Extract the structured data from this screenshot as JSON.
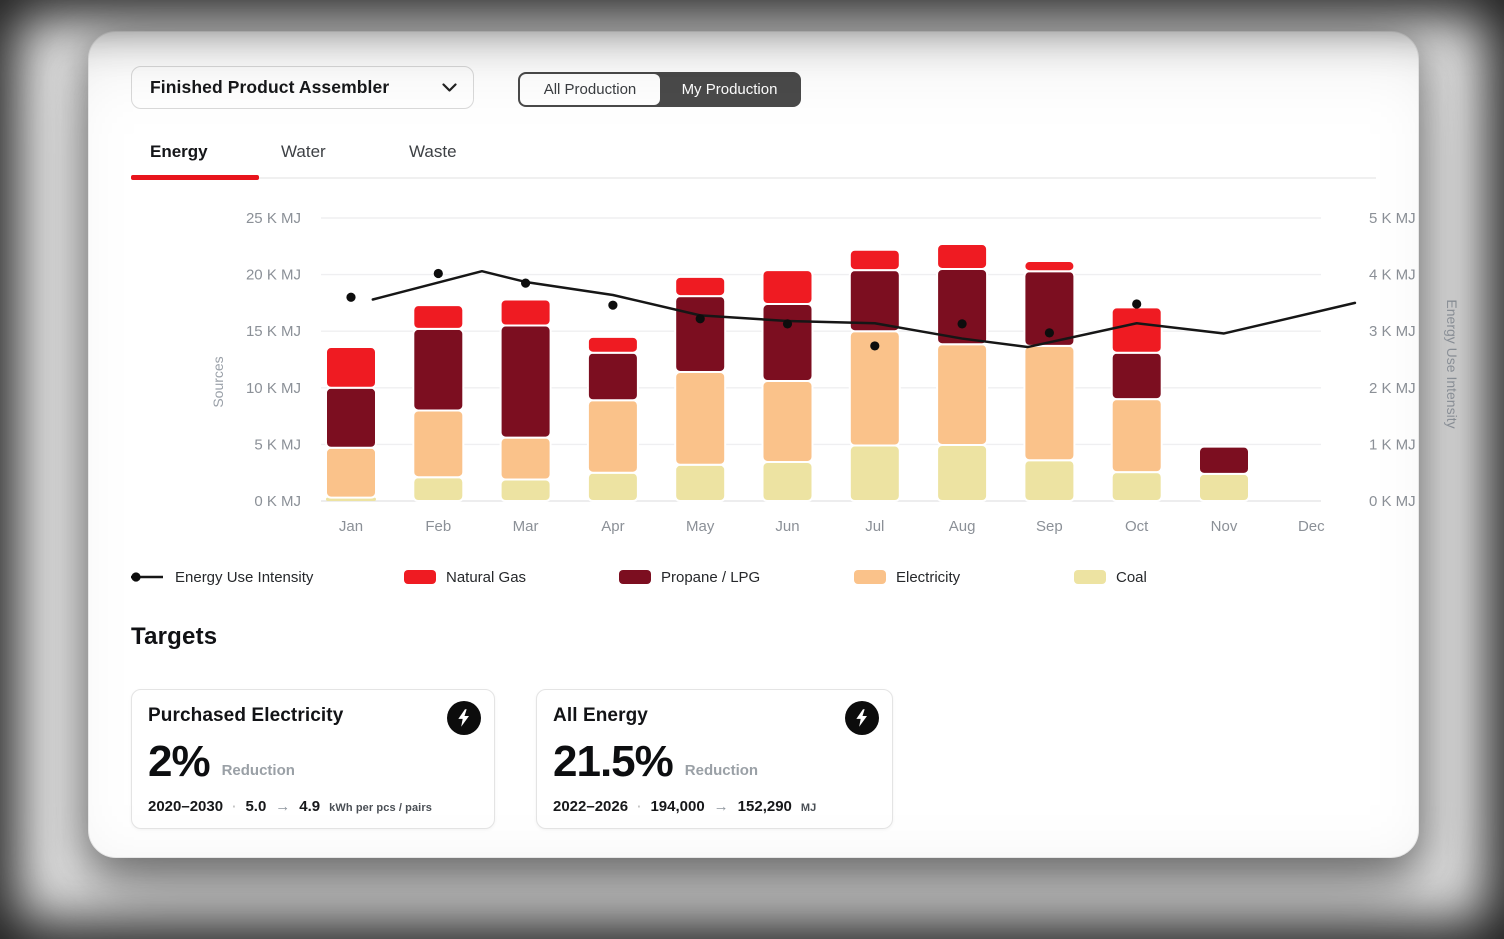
{
  "header": {
    "dropdown": {
      "label": "Finished Product Assembler"
    },
    "toggle": {
      "options": [
        "All Production",
        "My Production"
      ],
      "selected": "My Production"
    }
  },
  "tabs": [
    {
      "label": "Energy",
      "active": true
    },
    {
      "label": "Water",
      "active": false
    },
    {
      "label": "Waste",
      "active": false
    }
  ],
  "chart_data": {
    "type": "stacked-bar+line",
    "categories": [
      "Jan",
      "Feb",
      "Mar",
      "Apr",
      "May",
      "Jun",
      "Jul",
      "Aug",
      "Sep",
      "Oct",
      "Nov",
      "Dec"
    ],
    "left_axis": {
      "title": "Sources",
      "ticks": [
        "0 K MJ",
        "5 K MJ",
        "10 K MJ",
        "15 K MJ",
        "20 K MJ",
        "25 K MJ"
      ],
      "tick_values": [
        0,
        5,
        10,
        15,
        20,
        25
      ],
      "max": 25
    },
    "right_axis": {
      "title": "Energy Use Intensity",
      "ticks": [
        "0 K MJ",
        "1 K MJ",
        "2 K MJ",
        "3 K MJ",
        "4 K MJ",
        "5 K MJ"
      ],
      "tick_values": [
        0,
        1,
        2,
        3,
        4,
        5
      ],
      "max": 5
    },
    "series": [
      {
        "name": "Coal",
        "color": "#ede3a2",
        "values": [
          0.3,
          2.1,
          1.9,
          2.5,
          3.2,
          3.45,
          4.9,
          4.95,
          3.6,
          2.55,
          2.4,
          0
        ]
      },
      {
        "name": "Electricity",
        "color": "#fac28a",
        "values": [
          4.4,
          5.9,
          3.7,
          6.4,
          8.2,
          7.15,
          10.1,
          8.9,
          10.1,
          6.45,
          0,
          0
        ]
      },
      {
        "name": "Propane / LPG",
        "color": "#7c0e20",
        "values": [
          5.3,
          7.2,
          9.9,
          4.2,
          6.7,
          6.8,
          5.4,
          6.65,
          6.6,
          4.1,
          2.4,
          0
        ]
      },
      {
        "name": "Natural Gas",
        "color": "#ef1b22",
        "values": [
          3.6,
          2.1,
          2.3,
          1.4,
          1.7,
          3.0,
          1.8,
          2.2,
          0.9,
          4.0,
          0,
          0
        ]
      }
    ],
    "line_series": {
      "name": "Energy Use Intensity",
      "axis": "right",
      "color": "#161616",
      "points": [
        [
          0.25,
          3.56
        ],
        [
          1.5,
          4.06
        ],
        [
          2.0,
          3.87
        ],
        [
          3.0,
          3.64
        ],
        [
          4.0,
          3.28
        ],
        [
          5.0,
          3.18
        ],
        [
          6.0,
          3.14
        ],
        [
          7.0,
          2.87
        ],
        [
          7.75,
          2.72
        ],
        [
          9.0,
          3.14
        ],
        [
          10.0,
          2.96
        ],
        [
          11.5,
          3.5
        ]
      ]
    },
    "point_series": {
      "name": "Energy Use Intensity",
      "axis": "right",
      "color": "#0d0d0d",
      "values": [
        3.6,
        4.02,
        3.85,
        3.46,
        3.22,
        3.13,
        2.74,
        3.13,
        2.97,
        3.48,
        null,
        null
      ]
    }
  },
  "legend": {
    "items": [
      {
        "label": "Energy Use Intensity",
        "marker": "line-dot",
        "color": "#161616"
      },
      {
        "label": "Natural Gas",
        "marker": "swatch",
        "color": "#ef1b22"
      },
      {
        "label": "Propane / LPG",
        "marker": "swatch",
        "color": "#7c0e20"
      },
      {
        "label": "Electricity",
        "marker": "swatch",
        "color": "#fac28a"
      },
      {
        "label": "Coal",
        "marker": "swatch",
        "color": "#ede3a2"
      }
    ]
  },
  "targets": {
    "heading": "Targets",
    "cards": [
      {
        "title": "Purchased Electricity",
        "percent": "2%",
        "qualifier": "Reduction",
        "period": "2020–2030",
        "from": "5.0",
        "to": "4.9",
        "unit": "kWh per pcs / pairs"
      },
      {
        "title": "All Energy",
        "percent": "21.5%",
        "qualifier": "Reduction",
        "period": "2022–2026",
        "from": "194,000",
        "to": "152,290",
        "unit": "MJ"
      }
    ]
  }
}
